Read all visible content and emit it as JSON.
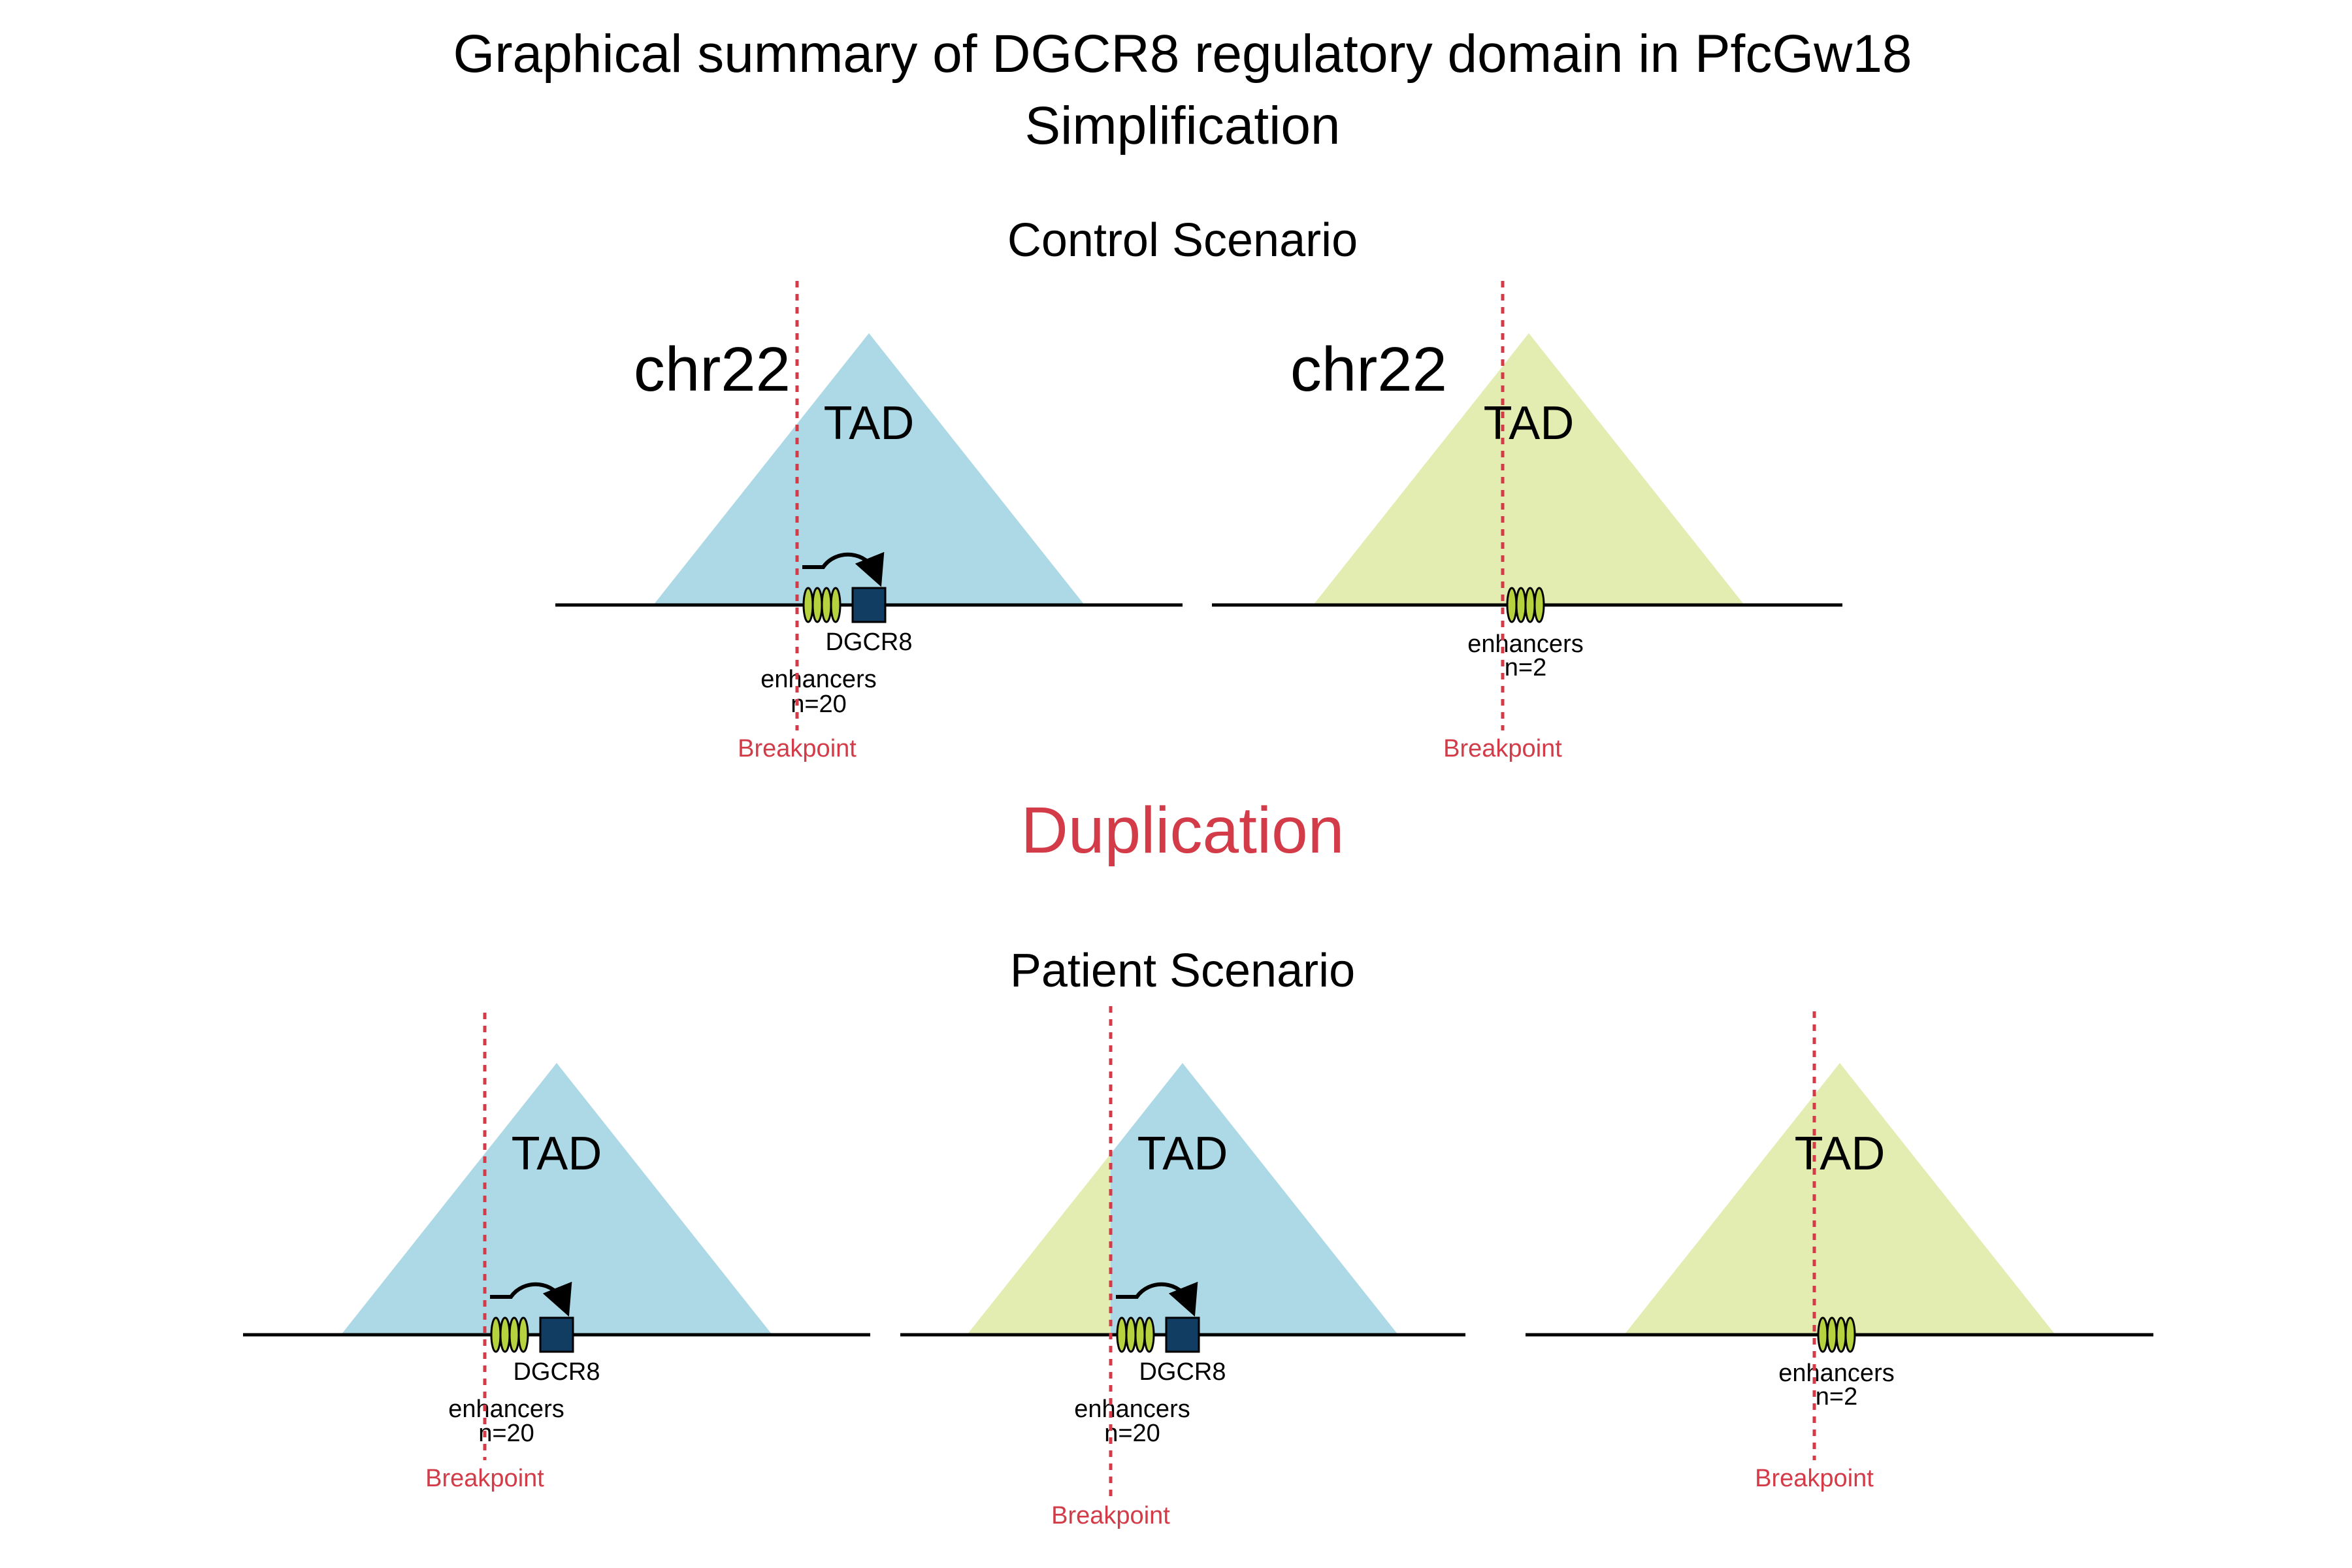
{
  "title": {
    "line1": "Graphical summary of DGCR8 regulatory domain in PfcGw18",
    "line2": "Simplification"
  },
  "control": {
    "label": "Control Scenario"
  },
  "event": {
    "label": "Duplication"
  },
  "patient": {
    "label": "Patient Scenario"
  },
  "labels": {
    "chromosome": "chr22",
    "tad": "TAD",
    "gene": "DGCR8",
    "enhancers": "enhancers",
    "enh_count_large": "n=20",
    "enh_count_small": "n=2",
    "breakpoint": "Breakpoint"
  },
  "colors": {
    "tad_blue": "#add8e6",
    "tad_green": "#e3ecb1",
    "gene_box": "#123d63",
    "enhancer_fill": "#b6d33f",
    "breakpoint": "#d23b47",
    "event_text": "#d23b47"
  },
  "panels": [
    {
      "id": "control-blue",
      "tad_color": "tad_blue",
      "chromosome_label": true,
      "gene": true,
      "enhancer_count": "n=20"
    },
    {
      "id": "control-green",
      "tad_color": "tad_green",
      "chromosome_label": true,
      "gene": false,
      "enhancer_count": "n=2"
    },
    {
      "id": "patient-blue",
      "tad_color": "tad_blue",
      "chromosome_label": false,
      "gene": true,
      "enhancer_count": "n=20"
    },
    {
      "id": "patient-hybrid",
      "tad_color": "tad_blue",
      "left_part_color": "tad_green",
      "chromosome_label": false,
      "gene": true,
      "enhancer_count": "n=20"
    },
    {
      "id": "patient-green",
      "tad_color": "tad_green",
      "chromosome_label": false,
      "gene": false,
      "enhancer_count": "n=2"
    }
  ]
}
